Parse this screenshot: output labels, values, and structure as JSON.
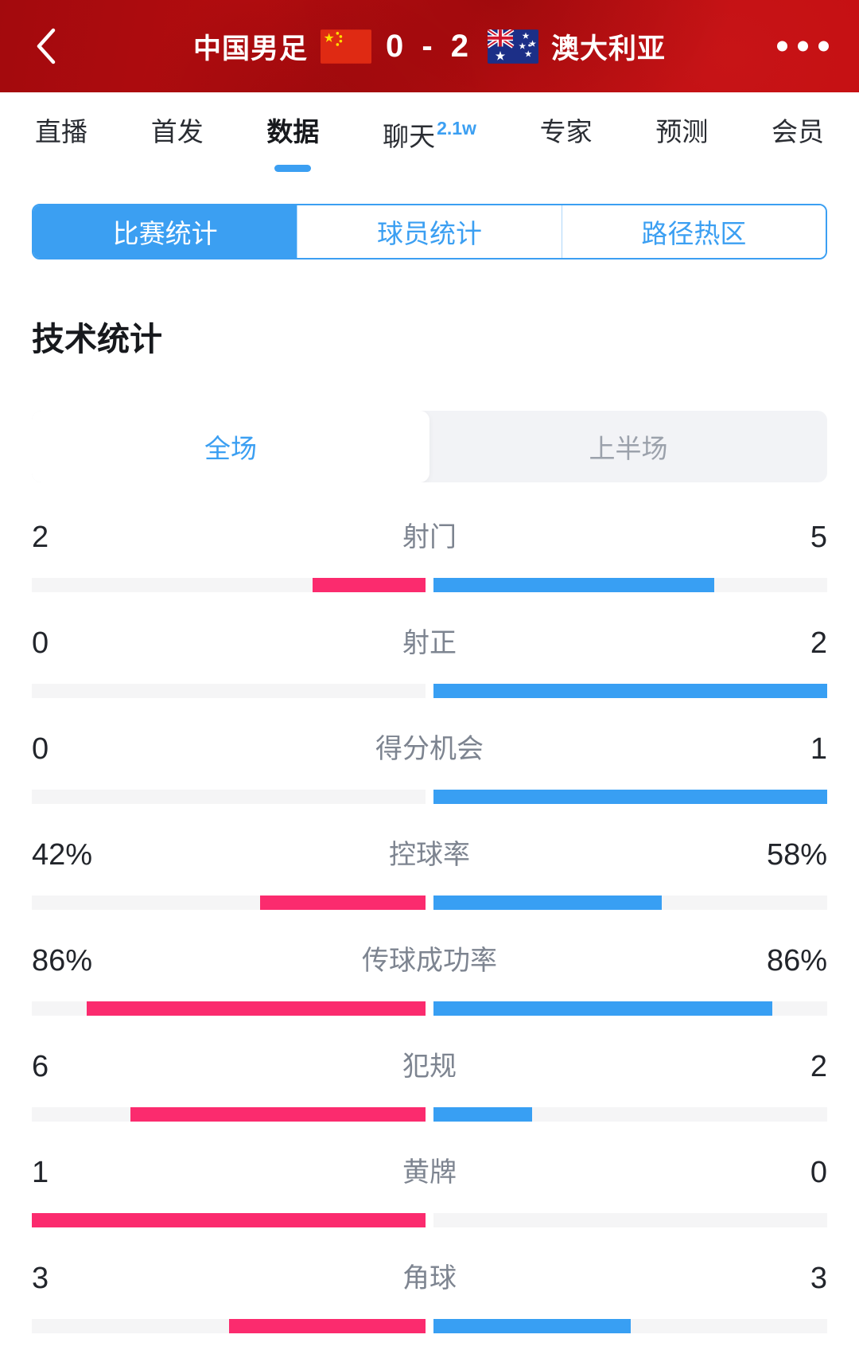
{
  "header": {
    "back_icon": "chevron-left",
    "home_team": "中国男足",
    "away_team": "澳大利亚",
    "score": "0 - 2",
    "menu_icon": "ellipsis"
  },
  "tabs": [
    {
      "name": "live",
      "label": "直播"
    },
    {
      "name": "lineup",
      "label": "首发"
    },
    {
      "name": "data",
      "label": "数据",
      "active": true
    },
    {
      "name": "chat",
      "label": "聊天",
      "badge": "2.1w"
    },
    {
      "name": "expert",
      "label": "专家"
    },
    {
      "name": "predict",
      "label": "预测"
    },
    {
      "name": "member",
      "label": "会员"
    }
  ],
  "sub_tabs": [
    {
      "name": "match-stats",
      "label": "比赛统计",
      "active": true
    },
    {
      "name": "player-stats",
      "label": "球员统计"
    },
    {
      "name": "heat-map",
      "label": "路径热区"
    }
  ],
  "section_title": "技术统计",
  "period_toggle": [
    {
      "name": "full-match",
      "label": "全场",
      "active": true
    },
    {
      "name": "first-half",
      "label": "上半场"
    }
  ],
  "colors": {
    "home_bar": "#fb2b6e",
    "away_bar": "#389ff3",
    "accent_blue": "#3b9ff2",
    "bar_track": "#f5f5f6",
    "header_red": "#bb0d10"
  },
  "chart_data": {
    "type": "bar",
    "title": "技术统计 全场",
    "legend": [
      "中国男足",
      "澳大利亚"
    ],
    "rows": [
      {
        "name": "shots",
        "label": "射门",
        "home_display": "2",
        "away_display": "5",
        "home_value": 2,
        "away_value": 5,
        "home_frac": 28.6,
        "away_frac": 71.4
      },
      {
        "name": "shots-on-target",
        "label": "射正",
        "home_display": "0",
        "away_display": "2",
        "home_value": 0,
        "away_value": 2,
        "home_frac": 0,
        "away_frac": 100
      },
      {
        "name": "big-chances",
        "label": "得分机会",
        "home_display": "0",
        "away_display": "1",
        "home_value": 0,
        "away_value": 1,
        "home_frac": 0,
        "away_frac": 100
      },
      {
        "name": "possession",
        "label": "控球率",
        "home_display": "42%",
        "away_display": "58%",
        "home_value": 42,
        "away_value": 58,
        "home_frac": 42,
        "away_frac": 58
      },
      {
        "name": "pass-accuracy",
        "label": "传球成功率",
        "home_display": "86%",
        "away_display": "86%",
        "home_value": 86,
        "away_value": 86,
        "home_frac": 86,
        "away_frac": 86
      },
      {
        "name": "fouls",
        "label": "犯规",
        "home_display": "6",
        "away_display": "2",
        "home_value": 6,
        "away_value": 2,
        "home_frac": 75,
        "away_frac": 25
      },
      {
        "name": "yellow-cards",
        "label": "黄牌",
        "home_display": "1",
        "away_display": "0",
        "home_value": 1,
        "away_value": 0,
        "home_frac": 100,
        "away_frac": 0
      },
      {
        "name": "corners",
        "label": "角球",
        "home_display": "3",
        "away_display": "3",
        "home_value": 3,
        "away_value": 3,
        "home_frac": 50,
        "away_frac": 50
      }
    ]
  }
}
